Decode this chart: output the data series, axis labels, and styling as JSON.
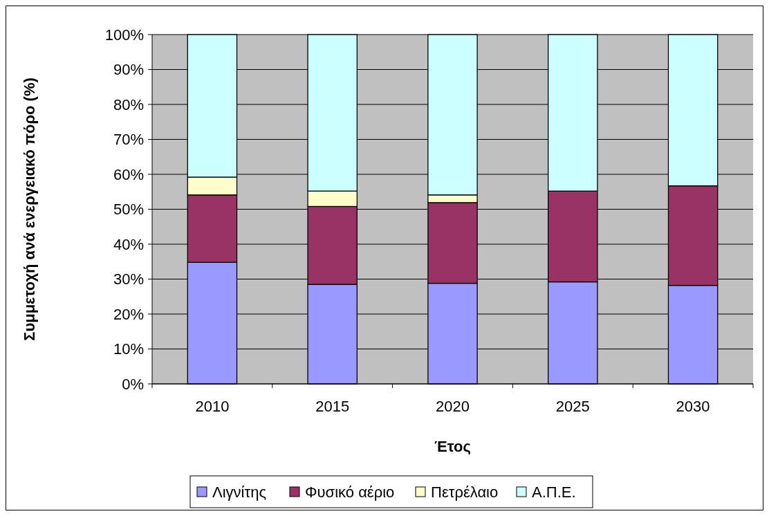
{
  "chart_data": {
    "type": "bar",
    "stacked": true,
    "xlabel": "Έτος",
    "ylabel": "Συμμετοχή ανά ενεργειακό πόρο (%)",
    "categories": [
      "2010",
      "2015",
      "2020",
      "2025",
      "2030"
    ],
    "series": [
      {
        "name": "Λιγνίτης",
        "color": "#9999ff",
        "values": [
          34.8,
          28.5,
          28.8,
          29.2,
          28.2
        ]
      },
      {
        "name": "Φυσικό αέριο",
        "color": "#993366",
        "values": [
          19.3,
          22.3,
          23.1,
          26.0,
          28.5
        ]
      },
      {
        "name": "Πετρέλαιο",
        "color": "#ffffcc",
        "values": [
          5.1,
          4.4,
          2.2,
          0,
          0
        ]
      },
      {
        "name": "Α.Π.Ε.",
        "color": "#ccffff",
        "values": [
          40.8,
          44.8,
          45.9,
          44.8,
          43.3
        ]
      }
    ],
    "ylim": [
      0,
      100
    ],
    "yticks": [
      {
        "value": 0,
        "label": "0%"
      },
      {
        "value": 10,
        "label": "10%"
      },
      {
        "value": 20,
        "label": "20%"
      },
      {
        "value": 30,
        "label": "30%"
      },
      {
        "value": 40,
        "label": "40%"
      },
      {
        "value": 50,
        "label": "50%"
      },
      {
        "value": 60,
        "label": "60%"
      },
      {
        "value": 70,
        "label": "70%"
      },
      {
        "value": 80,
        "label": "80%"
      },
      {
        "value": 90,
        "label": "90%"
      },
      {
        "value": 100,
        "label": "100%"
      }
    ],
    "grid": "y",
    "legend": "bottom"
  }
}
